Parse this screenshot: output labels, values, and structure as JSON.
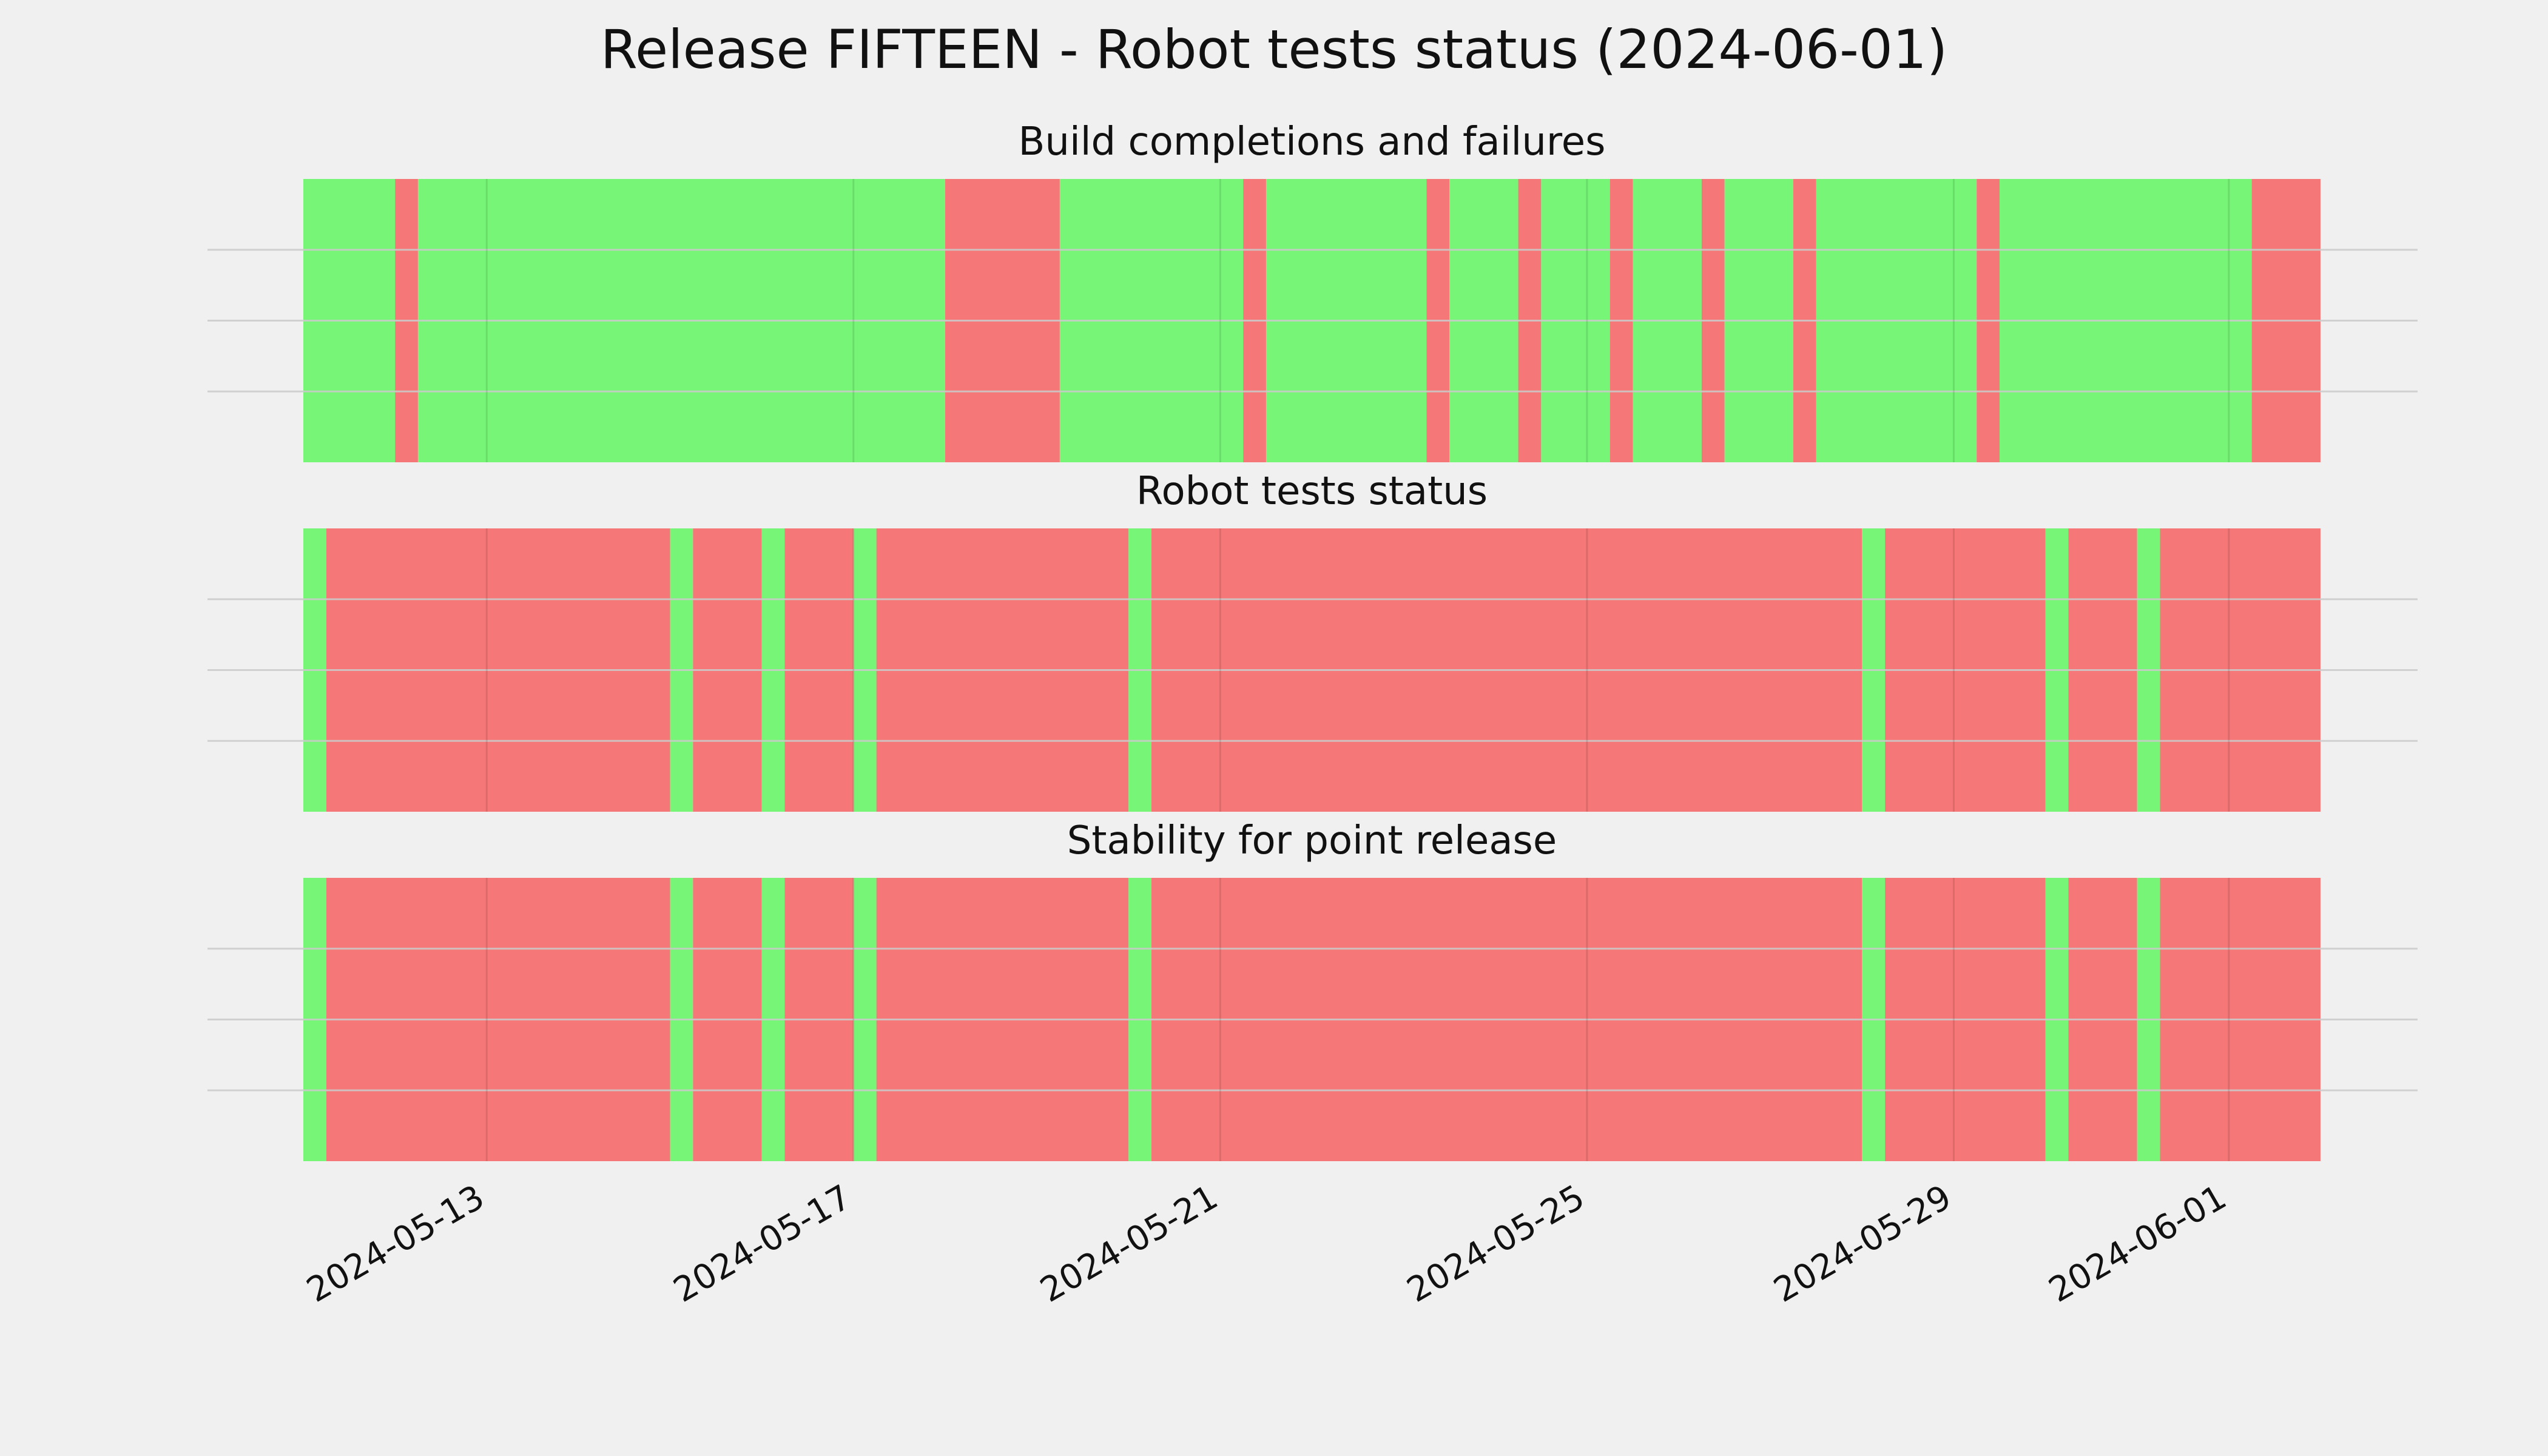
{
  "suptitle": "Release FIFTEEN - Robot tests status (2024-06-01)",
  "colors": {
    "pass": "#77f577",
    "fail": "#f57777",
    "background": "#f0f0f0",
    "grid": "#cbcbcb"
  },
  "chart_data": [
    {
      "type": "timeline",
      "title": "Build completions and failures",
      "xlim": [
        "2024-05-11",
        "2024-06-02"
      ],
      "x_tick_labels": [
        "2024-05-13",
        "2024-05-17",
        "2024-05-21",
        "2024-05-25",
        "2024-05-29",
        "2024-06-01"
      ],
      "grid": true,
      "segments": [
        {
          "start": "2024-05-11 00:00",
          "end": "2024-05-12 00:00",
          "status": "pass"
        },
        {
          "start": "2024-05-12 00:00",
          "end": "2024-05-12 06:00",
          "status": "fail"
        },
        {
          "start": "2024-05-12 06:00",
          "end": "2024-05-18 00:00",
          "status": "pass"
        },
        {
          "start": "2024-05-18 00:00",
          "end": "2024-05-19 06:00",
          "status": "fail"
        },
        {
          "start": "2024-05-19 06:00",
          "end": "2024-05-21 06:00",
          "status": "pass"
        },
        {
          "start": "2024-05-21 06:00",
          "end": "2024-05-21 12:00",
          "status": "fail"
        },
        {
          "start": "2024-05-21 12:00",
          "end": "2024-05-23 06:00",
          "status": "pass"
        },
        {
          "start": "2024-05-23 06:00",
          "end": "2024-05-23 12:00",
          "status": "fail"
        },
        {
          "start": "2024-05-23 12:00",
          "end": "2024-05-24 06:00",
          "status": "pass"
        },
        {
          "start": "2024-05-24 06:00",
          "end": "2024-05-24 12:00",
          "status": "fail"
        },
        {
          "start": "2024-05-24 12:00",
          "end": "2024-05-25 06:00",
          "status": "pass"
        },
        {
          "start": "2024-05-25 06:00",
          "end": "2024-05-25 12:00",
          "status": "fail"
        },
        {
          "start": "2024-05-25 12:00",
          "end": "2024-05-26 06:00",
          "status": "pass"
        },
        {
          "start": "2024-05-26 06:00",
          "end": "2024-05-26 12:00",
          "status": "fail"
        },
        {
          "start": "2024-05-26 12:00",
          "end": "2024-05-27 06:00",
          "status": "pass"
        },
        {
          "start": "2024-05-27 06:00",
          "end": "2024-05-27 12:00",
          "status": "fail"
        },
        {
          "start": "2024-05-27 12:00",
          "end": "2024-05-29 06:00",
          "status": "pass"
        },
        {
          "start": "2024-05-29 06:00",
          "end": "2024-05-29 12:00",
          "status": "fail"
        },
        {
          "start": "2024-05-29 12:00",
          "end": "2024-06-01 06:00",
          "status": "pass"
        },
        {
          "start": "2024-06-01 06:00",
          "end": "2024-06-02 00:00",
          "status": "fail"
        }
      ]
    },
    {
      "type": "timeline",
      "title": "Robot tests status",
      "xlim": [
        "2024-05-11",
        "2024-06-02"
      ],
      "x_tick_labels": [
        "2024-05-13",
        "2024-05-17",
        "2024-05-21",
        "2024-05-25",
        "2024-05-29",
        "2024-06-01"
      ],
      "grid": true,
      "segments": [
        {
          "start": "2024-05-11 00:00",
          "end": "2024-05-11 06:00",
          "status": "pass"
        },
        {
          "start": "2024-05-11 06:00",
          "end": "2024-05-15 00:00",
          "status": "fail"
        },
        {
          "start": "2024-05-15 00:00",
          "end": "2024-05-15 06:00",
          "status": "pass"
        },
        {
          "start": "2024-05-15 06:00",
          "end": "2024-05-16 00:00",
          "status": "fail"
        },
        {
          "start": "2024-05-16 00:00",
          "end": "2024-05-16 06:00",
          "status": "pass"
        },
        {
          "start": "2024-05-16 06:00",
          "end": "2024-05-17 00:00",
          "status": "fail"
        },
        {
          "start": "2024-05-17 00:00",
          "end": "2024-05-17 06:00",
          "status": "pass"
        },
        {
          "start": "2024-05-17 06:00",
          "end": "2024-05-20 00:00",
          "status": "fail"
        },
        {
          "start": "2024-05-20 00:00",
          "end": "2024-05-20 06:00",
          "status": "pass"
        },
        {
          "start": "2024-05-20 06:00",
          "end": "2024-05-28 00:00",
          "status": "fail"
        },
        {
          "start": "2024-05-28 00:00",
          "end": "2024-05-28 06:00",
          "status": "pass"
        },
        {
          "start": "2024-05-28 06:00",
          "end": "2024-05-30 00:00",
          "status": "fail"
        },
        {
          "start": "2024-05-30 00:00",
          "end": "2024-05-30 06:00",
          "status": "pass"
        },
        {
          "start": "2024-05-30 06:00",
          "end": "2024-05-31 00:00",
          "status": "fail"
        },
        {
          "start": "2024-05-31 00:00",
          "end": "2024-05-31 06:00",
          "status": "pass"
        },
        {
          "start": "2024-05-31 06:00",
          "end": "2024-06-02 00:00",
          "status": "fail"
        }
      ]
    },
    {
      "type": "timeline",
      "title": "Stability for point release",
      "xlim": [
        "2024-05-11",
        "2024-06-02"
      ],
      "x_tick_labels": [
        "2024-05-13",
        "2024-05-17",
        "2024-05-21",
        "2024-05-25",
        "2024-05-29",
        "2024-06-01"
      ],
      "grid": true,
      "segments": [
        {
          "start": "2024-05-11 00:00",
          "end": "2024-05-11 06:00",
          "status": "pass"
        },
        {
          "start": "2024-05-11 06:00",
          "end": "2024-05-15 00:00",
          "status": "fail"
        },
        {
          "start": "2024-05-15 00:00",
          "end": "2024-05-15 06:00",
          "status": "pass"
        },
        {
          "start": "2024-05-15 06:00",
          "end": "2024-05-16 00:00",
          "status": "fail"
        },
        {
          "start": "2024-05-16 00:00",
          "end": "2024-05-16 06:00",
          "status": "pass"
        },
        {
          "start": "2024-05-16 06:00",
          "end": "2024-05-17 00:00",
          "status": "fail"
        },
        {
          "start": "2024-05-17 00:00",
          "end": "2024-05-17 06:00",
          "status": "pass"
        },
        {
          "start": "2024-05-17 06:00",
          "end": "2024-05-20 00:00",
          "status": "fail"
        },
        {
          "start": "2024-05-20 00:00",
          "end": "2024-05-20 06:00",
          "status": "pass"
        },
        {
          "start": "2024-05-20 06:00",
          "end": "2024-05-28 00:00",
          "status": "fail"
        },
        {
          "start": "2024-05-28 00:00",
          "end": "2024-05-28 06:00",
          "status": "pass"
        },
        {
          "start": "2024-05-28 06:00",
          "end": "2024-05-30 00:00",
          "status": "fail"
        },
        {
          "start": "2024-05-30 00:00",
          "end": "2024-05-30 06:00",
          "status": "pass"
        },
        {
          "start": "2024-05-30 06:00",
          "end": "2024-05-31 00:00",
          "status": "fail"
        },
        {
          "start": "2024-05-31 00:00",
          "end": "2024-05-31 06:00",
          "status": "pass"
        },
        {
          "start": "2024-05-31 06:00",
          "end": "2024-06-02 00:00",
          "status": "fail"
        }
      ]
    }
  ]
}
